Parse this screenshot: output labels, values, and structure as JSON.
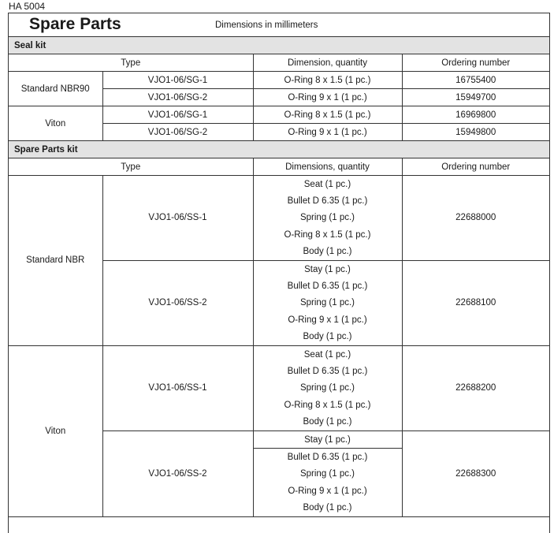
{
  "doc_id": "HA 5004",
  "title": "Spare Parts",
  "subtitle": "Dimensions in millimeters",
  "seal_kit": {
    "label": "Seal kit",
    "headers": [
      "Type",
      "Dimension, quantity",
      "Ordering number"
    ],
    "groups": [
      {
        "name": "Standard NBR90",
        "rows": [
          {
            "type": "VJO1-06/SG-1",
            "dimension": "O-Ring 8 x 1.5 (1 pc.)",
            "order": "16755400"
          },
          {
            "type": "VJO1-06/SG-2",
            "dimension": "O-Ring 9 x 1 (1 pc.)",
            "order": "15949700"
          }
        ]
      },
      {
        "name": "Viton",
        "rows": [
          {
            "type": "VJO1-06/SG-1",
            "dimension": "O-Ring 8 x 1.5 (1 pc.)",
            "order": "16969800"
          },
          {
            "type": "VJO1-06/SG-2",
            "dimension": "O-Ring 9 x 1 (1 pc.)",
            "order": "15949800"
          }
        ]
      }
    ]
  },
  "spare_kit": {
    "label": "Spare Parts kit",
    "headers": [
      "Type",
      "Dimensions, quantity",
      "Ordering number"
    ],
    "groups": [
      {
        "name": "Standard NBR",
        "rows": [
          {
            "type": "VJO1-06/SS-1",
            "items": [
              "Seat (1 pc.)",
              "Bullet D 6.35 (1 pc.)",
              "Spring (1 pc.)",
              "O-Ring 8 x 1.5 (1 pc.)",
              "Body (1 pc.)"
            ],
            "order": "22688000"
          },
          {
            "type": "VJO1-06/SS-2",
            "items": [
              "Stay (1 pc.)",
              "Bullet D 6.35 (1 pc.)",
              "Spring (1 pc.)",
              "O-Ring 9 x 1 (1 pc.)",
              "Body (1 pc.)"
            ],
            "order": "22688100"
          }
        ]
      },
      {
        "name": "Viton",
        "rows": [
          {
            "type": "VJO1-06/SS-1",
            "items": [
              "Seat (1 pc.)",
              "Bullet D 6.35 (1 pc.)",
              "Spring (1 pc.)",
              "O-Ring 8 x 1.5 (1 pc.)",
              "Body (1 pc.)"
            ],
            "order": "22688200"
          },
          {
            "type": "VJO1-06/SS-2",
            "items": [
              "Stay (1 pc.)",
              "Bullet D 6.35 (1 pc.)",
              "Spring (1 pc.)",
              "O-Ring 9 x 1 (1 pc.)",
              "Body (1 pc.)"
            ],
            "order": "22688300"
          }
        ]
      }
    ]
  }
}
